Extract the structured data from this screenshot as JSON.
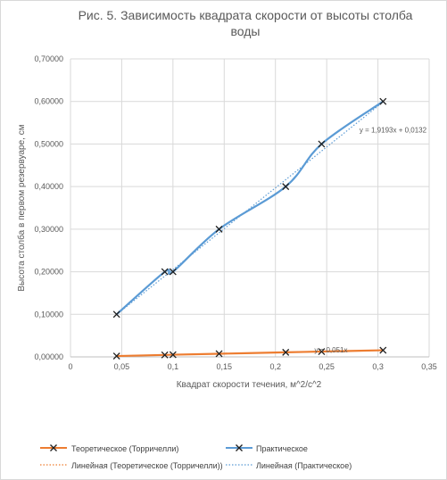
{
  "chart_data": {
    "type": "line",
    "title_lines": [
      "Рис. 5. Зависимость квадрата скорости от высоты столба",
      "воды"
    ],
    "xlabel": "Квадрат скорости течения, м^2/с^2",
    "ylabel": "Высота столба в первом резервуаре, см",
    "xlim": [
      0,
      0.35
    ],
    "ylim": [
      0,
      0.7
    ],
    "x_ticks": [
      "0",
      "0,05",
      "0,1",
      "0,15",
      "0,2",
      "0,25",
      "0,3",
      "0,35"
    ],
    "y_ticks": [
      "0,00000",
      "0,10000",
      "0,20000",
      "0,30000",
      "0,40000",
      "0,50000",
      "0,60000",
      "0,70000"
    ],
    "grid": true,
    "legend_position": "bottom",
    "series": [
      {
        "name": "Теоретическое (Торричелли)",
        "color": "#ed7d31",
        "marker": "x",
        "points": [
          [
            0.045,
            0.002
          ],
          [
            0.092,
            0.0046
          ],
          [
            0.1,
            0.0051
          ],
          [
            0.145,
            0.0074
          ],
          [
            0.21,
            0.0107
          ],
          [
            0.245,
            0.0125
          ],
          [
            0.305,
            0.0156
          ]
        ]
      },
      {
        "name": "Практическое",
        "color": "#5b9bd5",
        "marker": "x",
        "points": [
          [
            0.045,
            0.1
          ],
          [
            0.092,
            0.2
          ],
          [
            0.1,
            0.2
          ],
          [
            0.145,
            0.3
          ],
          [
            0.21,
            0.4
          ],
          [
            0.245,
            0.5
          ],
          [
            0.305,
            0.6
          ]
        ]
      }
    ],
    "trendlines": [
      {
        "name": "Линейная (Теоретическое (Торричелли))",
        "color": "#ed7d31",
        "slope": 0.051,
        "intercept": 0,
        "equation": "y = 0,051x"
      },
      {
        "name": "Линейная (Практическое)",
        "color": "#5b9bd5",
        "slope": 1.9193,
        "intercept": 0.0132,
        "equation": "y = 1,9193x + 0,0132"
      }
    ]
  }
}
